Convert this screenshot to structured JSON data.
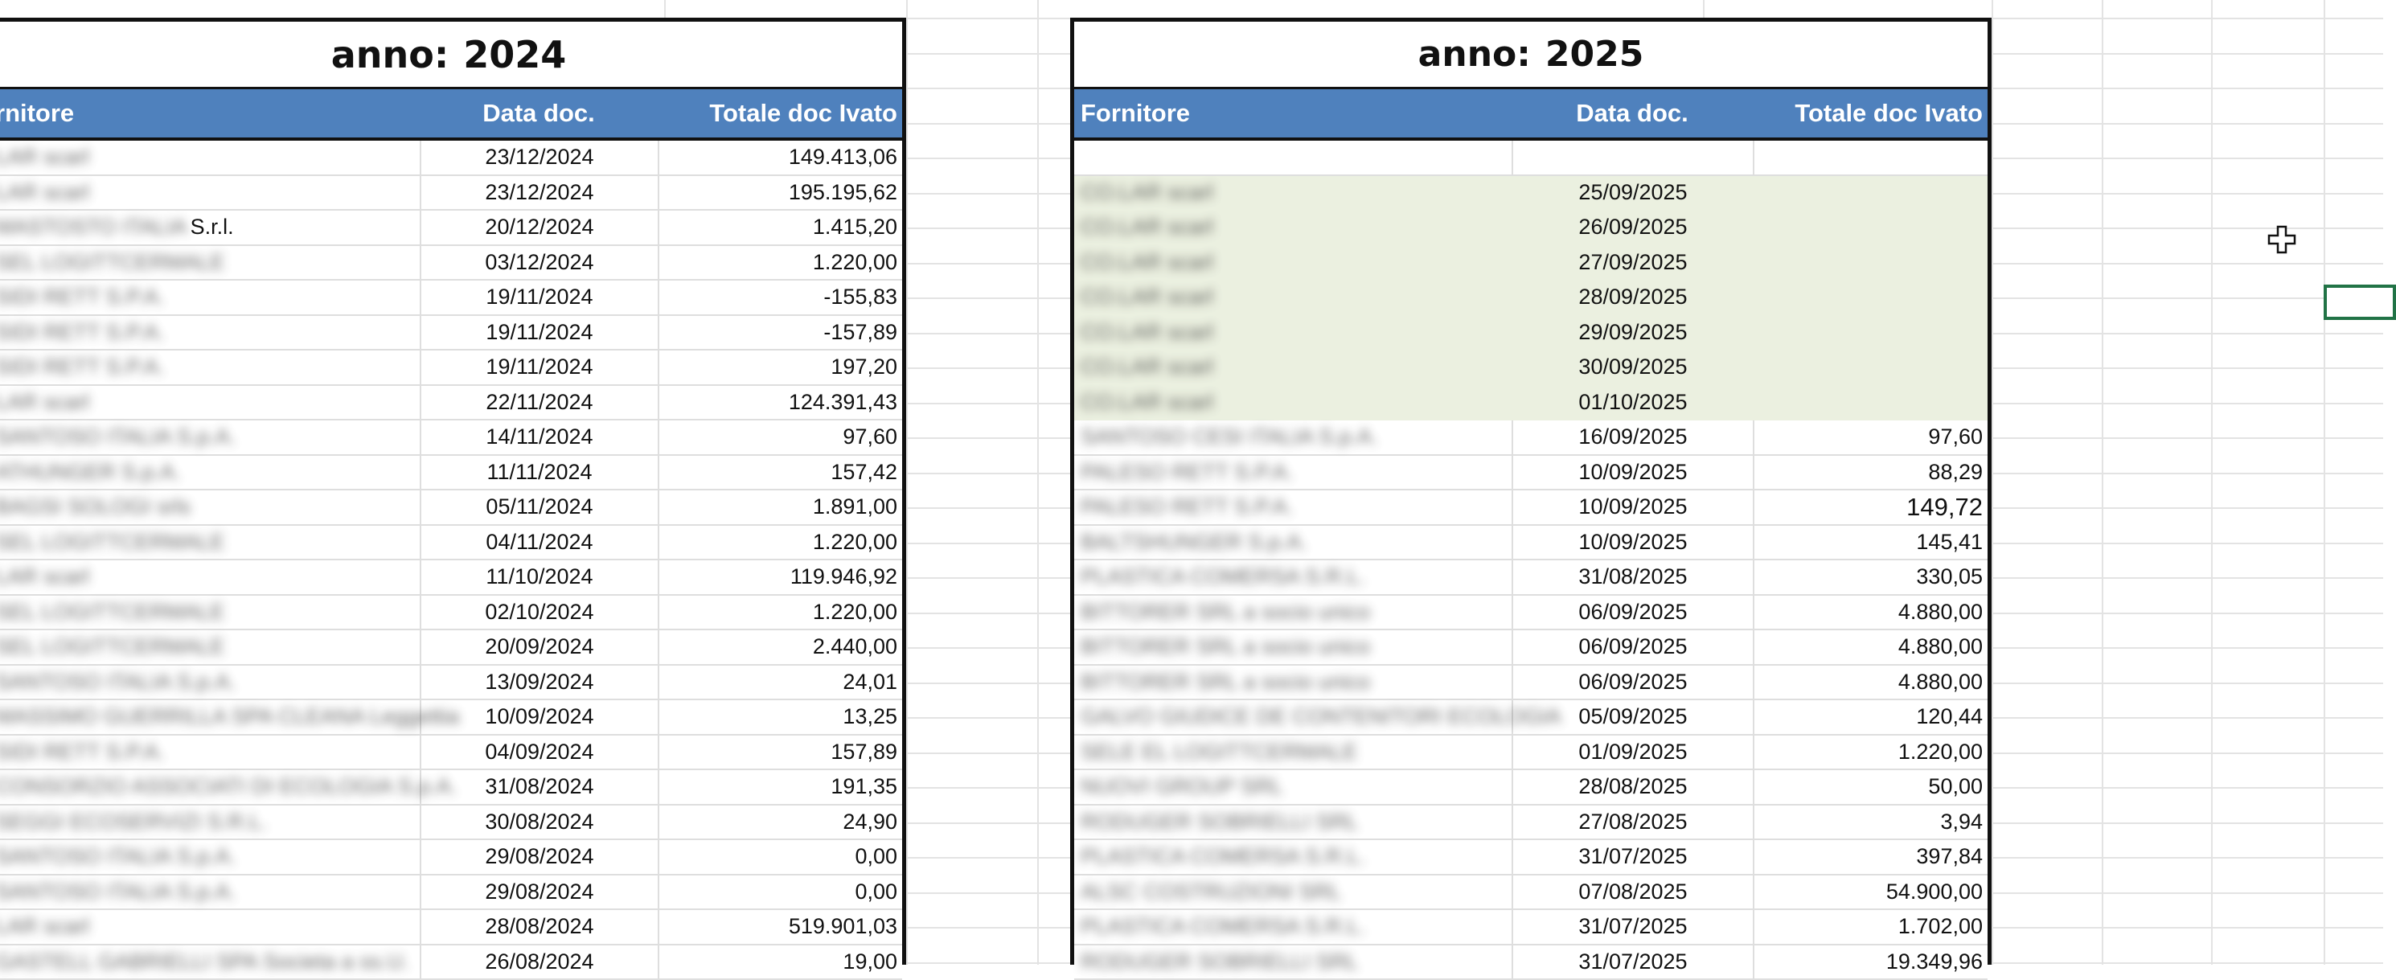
{
  "left_table": {
    "title_label": "anno:",
    "year": "2024",
    "headers": {
      "supplier": "rnitore",
      "date": "Data doc.",
      "total": "Totale doc Ivato"
    },
    "rows": [
      {
        "supplier": "LAR scarl",
        "date": "23/12/2024",
        "total": "149.413,06"
      },
      {
        "supplier": "LAR scarl",
        "date": "23/12/2024",
        "total": "195.195,62"
      },
      {
        "supplier": "MASTOSTO ITALIA",
        "supplier_tail": "S.r.l.",
        "date": "20/12/2024",
        "total": "1.415,20"
      },
      {
        "supplier": "SEL LOGITTCERMALE",
        "date": "03/12/2024",
        "total": "1.220,00"
      },
      {
        "supplier": "SIDI RETT S.P.A.",
        "date": "19/11/2024",
        "total": "-155,83"
      },
      {
        "supplier": "SIDI RETT S.P.A.",
        "date": "19/11/2024",
        "total": "-157,89"
      },
      {
        "supplier": "SIDI RETT S.P.A.",
        "date": "19/11/2024",
        "total": "197,20"
      },
      {
        "supplier": "LAR scarl",
        "date": "22/11/2024",
        "total": "124.391,43"
      },
      {
        "supplier": "SANTOSO ITALIA S.p.A.",
        "date": "14/11/2024",
        "total": "97,60"
      },
      {
        "supplier": "ATHUNGER S.p.A.",
        "date": "11/11/2024",
        "total": "157,42"
      },
      {
        "supplier": "BAGSI SOLOGI srls",
        "date": "05/11/2024",
        "total": "1.891,00"
      },
      {
        "supplier": "SEL LOGITTCERMALE",
        "date": "04/11/2024",
        "total": "1.220,00"
      },
      {
        "supplier": "LAR scarl",
        "date": "11/10/2024",
        "total": "119.946,92"
      },
      {
        "supplier": "SEL LOGITTCERMALE",
        "date": "02/10/2024",
        "total": "1.220,00"
      },
      {
        "supplier": "SEL LOGITTCERMALE",
        "date": "20/09/2024",
        "total": "2.440,00"
      },
      {
        "supplier": "SANTOSO ITALIA S.p.A.",
        "date": "13/09/2024",
        "total": "24,01"
      },
      {
        "supplier": "MASSIMO GUERRILLA SPA CLEANA Leggettia",
        "date": "10/09/2024",
        "total": "13,25"
      },
      {
        "supplier": "SIDI RETT S.P.A.",
        "date": "04/09/2024",
        "total": "157,89"
      },
      {
        "supplier": "CONSORZIO ASSOCIATI DI ECOLOGIA S.p.A.",
        "date": "31/08/2024",
        "total": "191,35"
      },
      {
        "supplier": "SEGGI ECOSERVIZI S.R.L.",
        "date": "30/08/2024",
        "total": "24,90"
      },
      {
        "supplier": "SANTOSO ITALIA S.p.A.",
        "date": "29/08/2024",
        "total": "0,00"
      },
      {
        "supplier": "SANTOSO ITALIA S.p.A.",
        "date": "29/08/2024",
        "total": "0,00"
      },
      {
        "supplier": "LAR scarl",
        "date": "28/08/2024",
        "total": "519.901,03"
      },
      {
        "supplier": "GASTELL GABRIELLI SPA Societa a ss.U.",
        "date": "26/08/2024",
        "total": "19,00"
      }
    ]
  },
  "right_table": {
    "title_label": "anno:",
    "year": "2025",
    "headers": {
      "supplier": "Fornitore",
      "date": "Data doc.",
      "total": "Totale doc Ivato"
    },
    "rows": [
      {
        "supplier": "",
        "date": "",
        "total": "",
        "hl": false
      },
      {
        "supplier": "CO.LAR scarl",
        "date": "25/09/2025",
        "total": "",
        "hl": true
      },
      {
        "supplier": "CO.LAR scarl",
        "date": "26/09/2025",
        "total": "",
        "hl": true
      },
      {
        "supplier": "CO.LAR scarl",
        "date": "27/09/2025",
        "total": "",
        "hl": true
      },
      {
        "supplier": "CO.LAR scarl",
        "date": "28/09/2025",
        "total": "",
        "hl": true
      },
      {
        "supplier": "CO.LAR scarl",
        "date": "29/09/2025",
        "total": "",
        "hl": true
      },
      {
        "supplier": "CO.LAR scarl",
        "date": "30/09/2025",
        "total": "",
        "hl": true
      },
      {
        "supplier": "CO.LAR scarl",
        "date": "01/10/2025",
        "total": "",
        "hl": true
      },
      {
        "supplier": "SANTOSO CESI ITALIA S.p.A.",
        "date": "16/09/2025",
        "total": "97,60",
        "hl": false
      },
      {
        "supplier": "PALESO RETT S.P.A.",
        "date": "10/09/2025",
        "total": "88,29",
        "hl": false
      },
      {
        "supplier": "PALESO RETT S.P.A.",
        "date": "10/09/2025",
        "total": "149,72",
        "hl": false,
        "big": true
      },
      {
        "supplier": "BALTSHUNGER S.p.A.",
        "date": "10/09/2025",
        "total": "145,41",
        "hl": false
      },
      {
        "supplier": "PLASTICA COMERSA S.R.L.",
        "date": "31/08/2025",
        "total": "330,05",
        "hl": false
      },
      {
        "supplier": "BITTORER SRL a socio unico",
        "date": "06/09/2025",
        "total": "4.880,00",
        "hl": false
      },
      {
        "supplier": "BITTORER SRL a socio unico",
        "date": "06/09/2025",
        "total": "4.880,00",
        "hl": false
      },
      {
        "supplier": "BITTORER SRL a socio unico",
        "date": "06/09/2025",
        "total": "4.880,00",
        "hl": false
      },
      {
        "supplier": "GALVO GIUDICE DE CONTENITORI ECOLOGIA",
        "date": "05/09/2025",
        "total": "120,44",
        "hl": false
      },
      {
        "supplier": "SELE EL LOGITTCERMALE",
        "date": "01/09/2025",
        "total": "1.220,00",
        "hl": false
      },
      {
        "supplier": "NUOVI GROUP SRL",
        "date": "28/08/2025",
        "total": "50,00",
        "hl": false
      },
      {
        "supplier": "RODUGER SOBRIELLI SRL",
        "date": "27/08/2025",
        "total": "3,94",
        "hl": false
      },
      {
        "supplier": "PLASTICA COMERSA S.R.L.",
        "date": "31/07/2025",
        "total": "397,84",
        "hl": false
      },
      {
        "supplier": "ALSC COSTRUZIONI SRL",
        "date": "07/08/2025",
        "total": "54.900,00",
        "hl": false
      },
      {
        "supplier": "PLASTICA COMERSA S.R.L.",
        "date": "31/07/2025",
        "total": "1.702,00",
        "hl": false
      },
      {
        "supplier": "RODUGER SOBRIELLI SRL",
        "date": "31/07/2025",
        "total": "19.349,96",
        "hl": false
      }
    ]
  },
  "icons": {
    "cursor": "move-cursor-icon"
  },
  "colors": {
    "header_bg": "#4f81bd",
    "highlight_bg": "#ebf0e0",
    "selection_border": "#217346"
  }
}
